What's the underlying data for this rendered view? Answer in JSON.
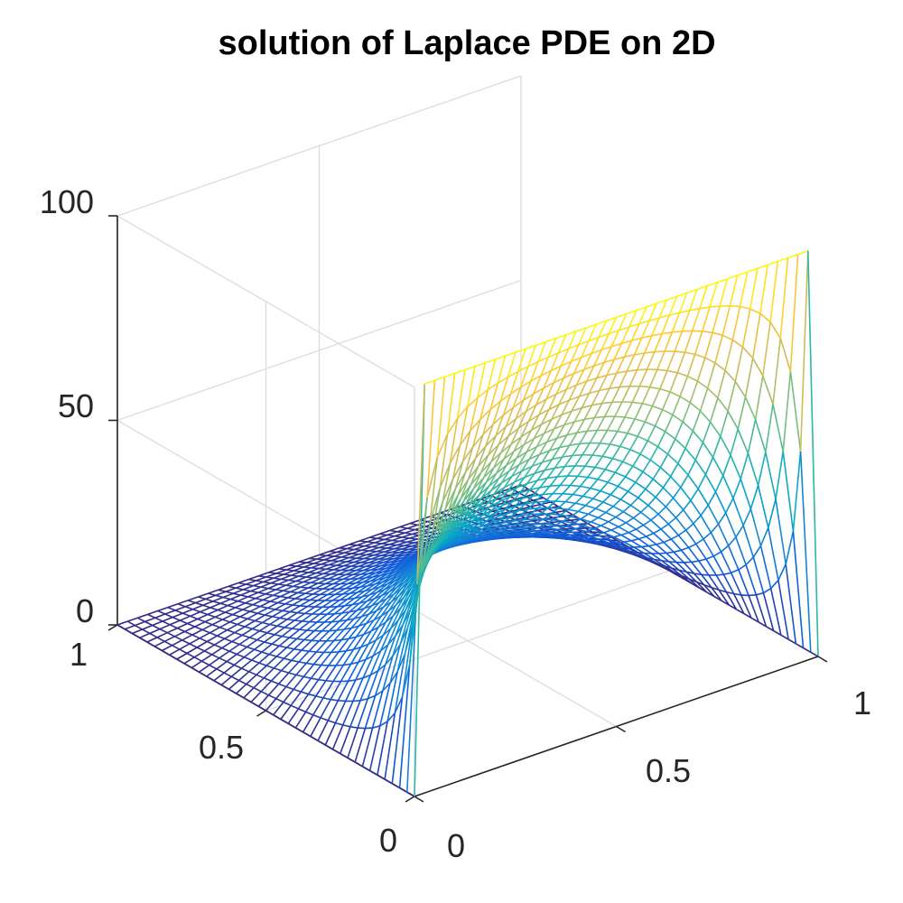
{
  "chart_data": {
    "type": "surface-mesh",
    "title": "solution of Laplace PDE on 2D",
    "xlabel": "",
    "ylabel": "",
    "zlabel": "",
    "xlim": [
      0,
      1
    ],
    "ylim": [
      0,
      1
    ],
    "zlim": [
      0,
      100
    ],
    "x_ticks": [
      "0",
      "0.5",
      "1"
    ],
    "y_ticks": [
      "0",
      "0.5",
      "1"
    ],
    "z_ticks": [
      "0",
      "50",
      "100"
    ],
    "grid": true,
    "colormap": "parula",
    "colormap_stops": [
      "#352a87",
      "#0f5cdd",
      "#1481d6",
      "#06a4ca",
      "#2eb7a4",
      "#87bf77",
      "#d1bb59",
      "#fec832",
      "#f9fb0e"
    ],
    "mesh": {
      "nx": 41,
      "ny": 41,
      "boundary_values": {
        "x_at_0": 0,
        "x_at_1": 0,
        "y_at_0": 100,
        "y_at_1": 0
      },
      "series_terms": 41
    }
  }
}
